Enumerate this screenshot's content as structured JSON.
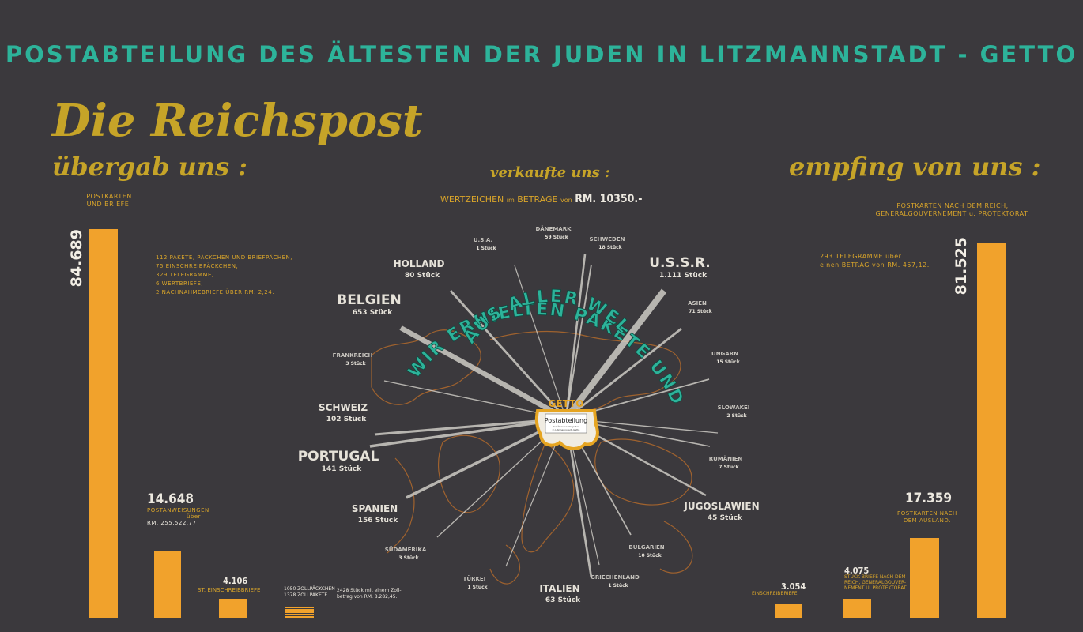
{
  "title": "POSTABTEILUNG DES ÄLTESTEN DER JUDEN IN LITZMANNSTADT - GETTO",
  "heading": "Die Reichspost",
  "left_heading": "übergab uns :",
  "center_heading": "verkaufte uns :",
  "right_heading": "empfing von uns :",
  "stamps": {
    "prefix": "WERTZEICHEN",
    "mid1": "im",
    "mid2": "BETRAGE",
    "mid3": "von",
    "amount": "RM. 10350.-"
  },
  "left_bars": {
    "postkarten": {
      "value_label": "84.689",
      "label_line1": "POSTKARTEN",
      "label_line2": "UND BRIEFE."
    },
    "postanweisungen": {
      "value_label": "14.648",
      "label_line1": "POSTANWEISUNGEN",
      "label_line2": "über",
      "label_line3": "RM. 255.522,77"
    },
    "einschreib": {
      "value_label": "4.106",
      "label": "ST. EINSCHREIBBRIEFE"
    },
    "zoll": {
      "line1": "1050 ZOLLPÄCKCHEN",
      "line2": "1378 ZOLLPAKETE",
      "note1": "2428 Stück mit einem Zoll-",
      "note2": "betrag von RM. 8.282,45."
    }
  },
  "left_list": [
    "112 PAKETE, PÄCKCHEN UND BRIEFPÄCHEN,",
    "75 EINSCHREIBPÄCKCHEN,",
    "329 TELEGRAMME,",
    "6 WERTBRIEFE,",
    "2 NACHNAHMEBRIEFE ÜBER RM. 2,24."
  ],
  "right_bars": {
    "postkarten": {
      "value_label": "81.525",
      "label_line1": "POSTKARTEN NACH DEM REICH,",
      "label_line2": "GENERALGOUVERNEMENT u. PROTEKTORAT."
    },
    "ausland": {
      "value_label": "17.359",
      "label_line1": "POSTKARTEN NACH",
      "label_line2": "DEM AUSLAND."
    },
    "briefe": {
      "value_label": "4.075",
      "label_line1": "STÜCK BRIEFE NACH DEM",
      "label_line2": "REICH, GENERALGOUVER-",
      "label_line3": "NEMENT U. PROTEKTORAT."
    },
    "einschreib": {
      "value_label": "3.054",
      "label": "EINSCHREIBBRIEFE"
    }
  },
  "telegramme": {
    "line1": "293 TELEGRAMME über",
    "line2": "einen BETRAG von RM. 457,12."
  },
  "arc_line1": "WIR ERHIELTEN PAKETE UND PÄCKCHEN",
  "arc_line2": "AUS ALLER WELT",
  "getto_label": "GETTO",
  "stamp_box": {
    "line1": "Postabteilung",
    "line2": "des Ältesten der Juden",
    "line3": "in Litzmannstadt-Getto"
  },
  "countries": [
    {
      "name": "U.S.A.",
      "count": "1 Stück"
    },
    {
      "name": "DÄNEMARK",
      "count": "59 Stück"
    },
    {
      "name": "SCHWEDEN",
      "count": "18 Stück"
    },
    {
      "name": "HOLLAND",
      "count": "80 Stück"
    },
    {
      "name": "U.S.S.R.",
      "count": "1.111 Stück"
    },
    {
      "name": "BELGIEN",
      "count": "653 Stück"
    },
    {
      "name": "ASIEN",
      "count": "71 Stück"
    },
    {
      "name": "FRANKREICH",
      "count": "3 Stück"
    },
    {
      "name": "UNGARN",
      "count": "15 Stück"
    },
    {
      "name": "SCHWEIZ",
      "count": "102 Stück"
    },
    {
      "name": "SLOWAKEI",
      "count": "2 Stück"
    },
    {
      "name": "PORTUGAL",
      "count": "141 Stück"
    },
    {
      "name": "RUMÄNIEN",
      "count": "7 Stück"
    },
    {
      "name": "SPANIEN",
      "count": "156 Stück"
    },
    {
      "name": "JUGOSLAWIEN",
      "count": "45 Stück"
    },
    {
      "name": "SÜDAMERIKA",
      "count": "3 Stück"
    },
    {
      "name": "BULGARIEN",
      "count": "10 Stück"
    },
    {
      "name": "TÜRKEI",
      "count": "1 Stück"
    },
    {
      "name": "GRIECHENLAND",
      "count": "1 Stück"
    },
    {
      "name": "ITALIEN",
      "count": "63 Stück"
    }
  ],
  "chart_data": {
    "type": "bar",
    "title": "POSTABTEILUNG DES ÄLTESTEN DER JUDEN IN LITZMANNSTADT - GETTO",
    "groups": [
      {
        "name": "übergab uns :",
        "categories": [
          "POSTKARTEN UND BRIEFE.",
          "POSTANWEISUNGEN",
          "ST. EINSCHREIBBRIEFE",
          "ZOLLPÄCKCHEN / ZOLLPAKETE"
        ],
        "values": [
          84689,
          14648,
          4106,
          2428
        ]
      },
      {
        "name": "empfing von uns :",
        "categories": [
          "EINSCHREIBBRIEFE",
          "STÜCK BRIEFE NACH DEM REICH, GENERALGOUVERNEMENT U. PROTEKTORAT.",
          "POSTKARTEN NACH DEM AUSLAND.",
          "POSTKARTEN NACH DEM REICH, GENERALGOUVERNEMENT u. PROTEKTORAT."
        ],
        "values": [
          3054,
          4075,
          17359,
          81525
        ]
      }
    ],
    "radial": {
      "categories": [
        "U.S.A.",
        "DÄNEMARK",
        "SCHWEDEN",
        "HOLLAND",
        "U.S.S.R.",
        "BELGIEN",
        "ASIEN",
        "FRANKREICH",
        "UNGARN",
        "SCHWEIZ",
        "SLOWAKEI",
        "PORTUGAL",
        "RUMÄNIEN",
        "SPANIEN",
        "JUGOSLAWIEN",
        "SÜDAMERIKA",
        "BULGARIEN",
        "TÜRKEI",
        "GRIECHENLAND",
        "ITALIEN"
      ],
      "values": [
        1,
        59,
        18,
        80,
        1111,
        653,
        71,
        3,
        15,
        102,
        2,
        141,
        7,
        156,
        45,
        3,
        10,
        1,
        1,
        63
      ]
    }
  },
  "colors": {
    "background": "#3b393d",
    "title": "#2db39a",
    "gold": "#c6a428",
    "bar": "#f1a22c",
    "map": "#b26a2c"
  }
}
